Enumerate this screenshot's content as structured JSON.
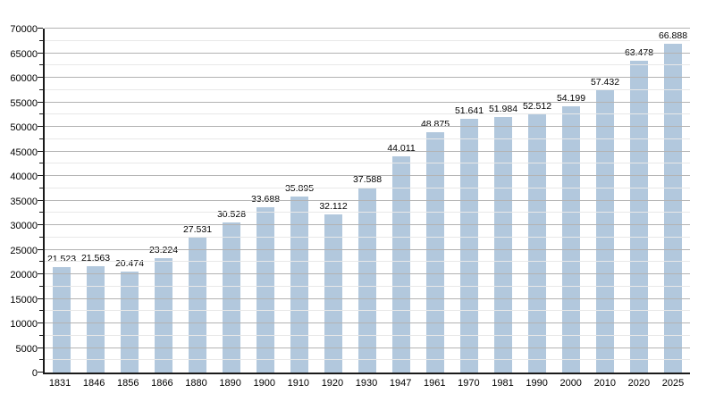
{
  "chart_data": {
    "type": "bar",
    "title": "",
    "xlabel": "",
    "ylabel": "",
    "categories": [
      "1831",
      "1846",
      "1856",
      "1866",
      "1880",
      "1890",
      "1900",
      "1910",
      "1920",
      "1930",
      "1947",
      "1961",
      "1970",
      "1981",
      "1990",
      "2000",
      "2010",
      "2020",
      "2025"
    ],
    "values": [
      21523,
      21563,
      20474,
      23224,
      27531,
      30528,
      33688,
      35895,
      32112,
      37588,
      44011,
      48875,
      51641,
      51984,
      52512,
      54199,
      57432,
      63478,
      66888
    ],
    "value_labels": [
      "21.523",
      "21.563",
      "20.474",
      "23.224",
      "27.531",
      "30.528",
      "33.688",
      "35.895",
      "32.112",
      "37.588",
      "44.011",
      "48.875",
      "51.641",
      "51.984",
      "52.512",
      "54.199",
      "57.432",
      "63.478",
      "66.888"
    ],
    "ylim": [
      0,
      70000
    ],
    "y_tick_step": 5000,
    "y_minor_tick_step": 2500,
    "y_tick_labels": [
      "0",
      "5000",
      "10000",
      "15000",
      "20000",
      "25000",
      "30000",
      "35000",
      "40000",
      "45000",
      "50000",
      "55000",
      "60000",
      "65000",
      "70000"
    ],
    "grid": "horizontal-major-and-minor",
    "legend_position": "none",
    "colors": {
      "bar": "#b2c8dd",
      "major_grid": "#b3b3b3",
      "minor_grid": "#e8e8e8",
      "axis": "#1a1a1a",
      "label_text": "#000000",
      "background": "#ffffff"
    }
  }
}
